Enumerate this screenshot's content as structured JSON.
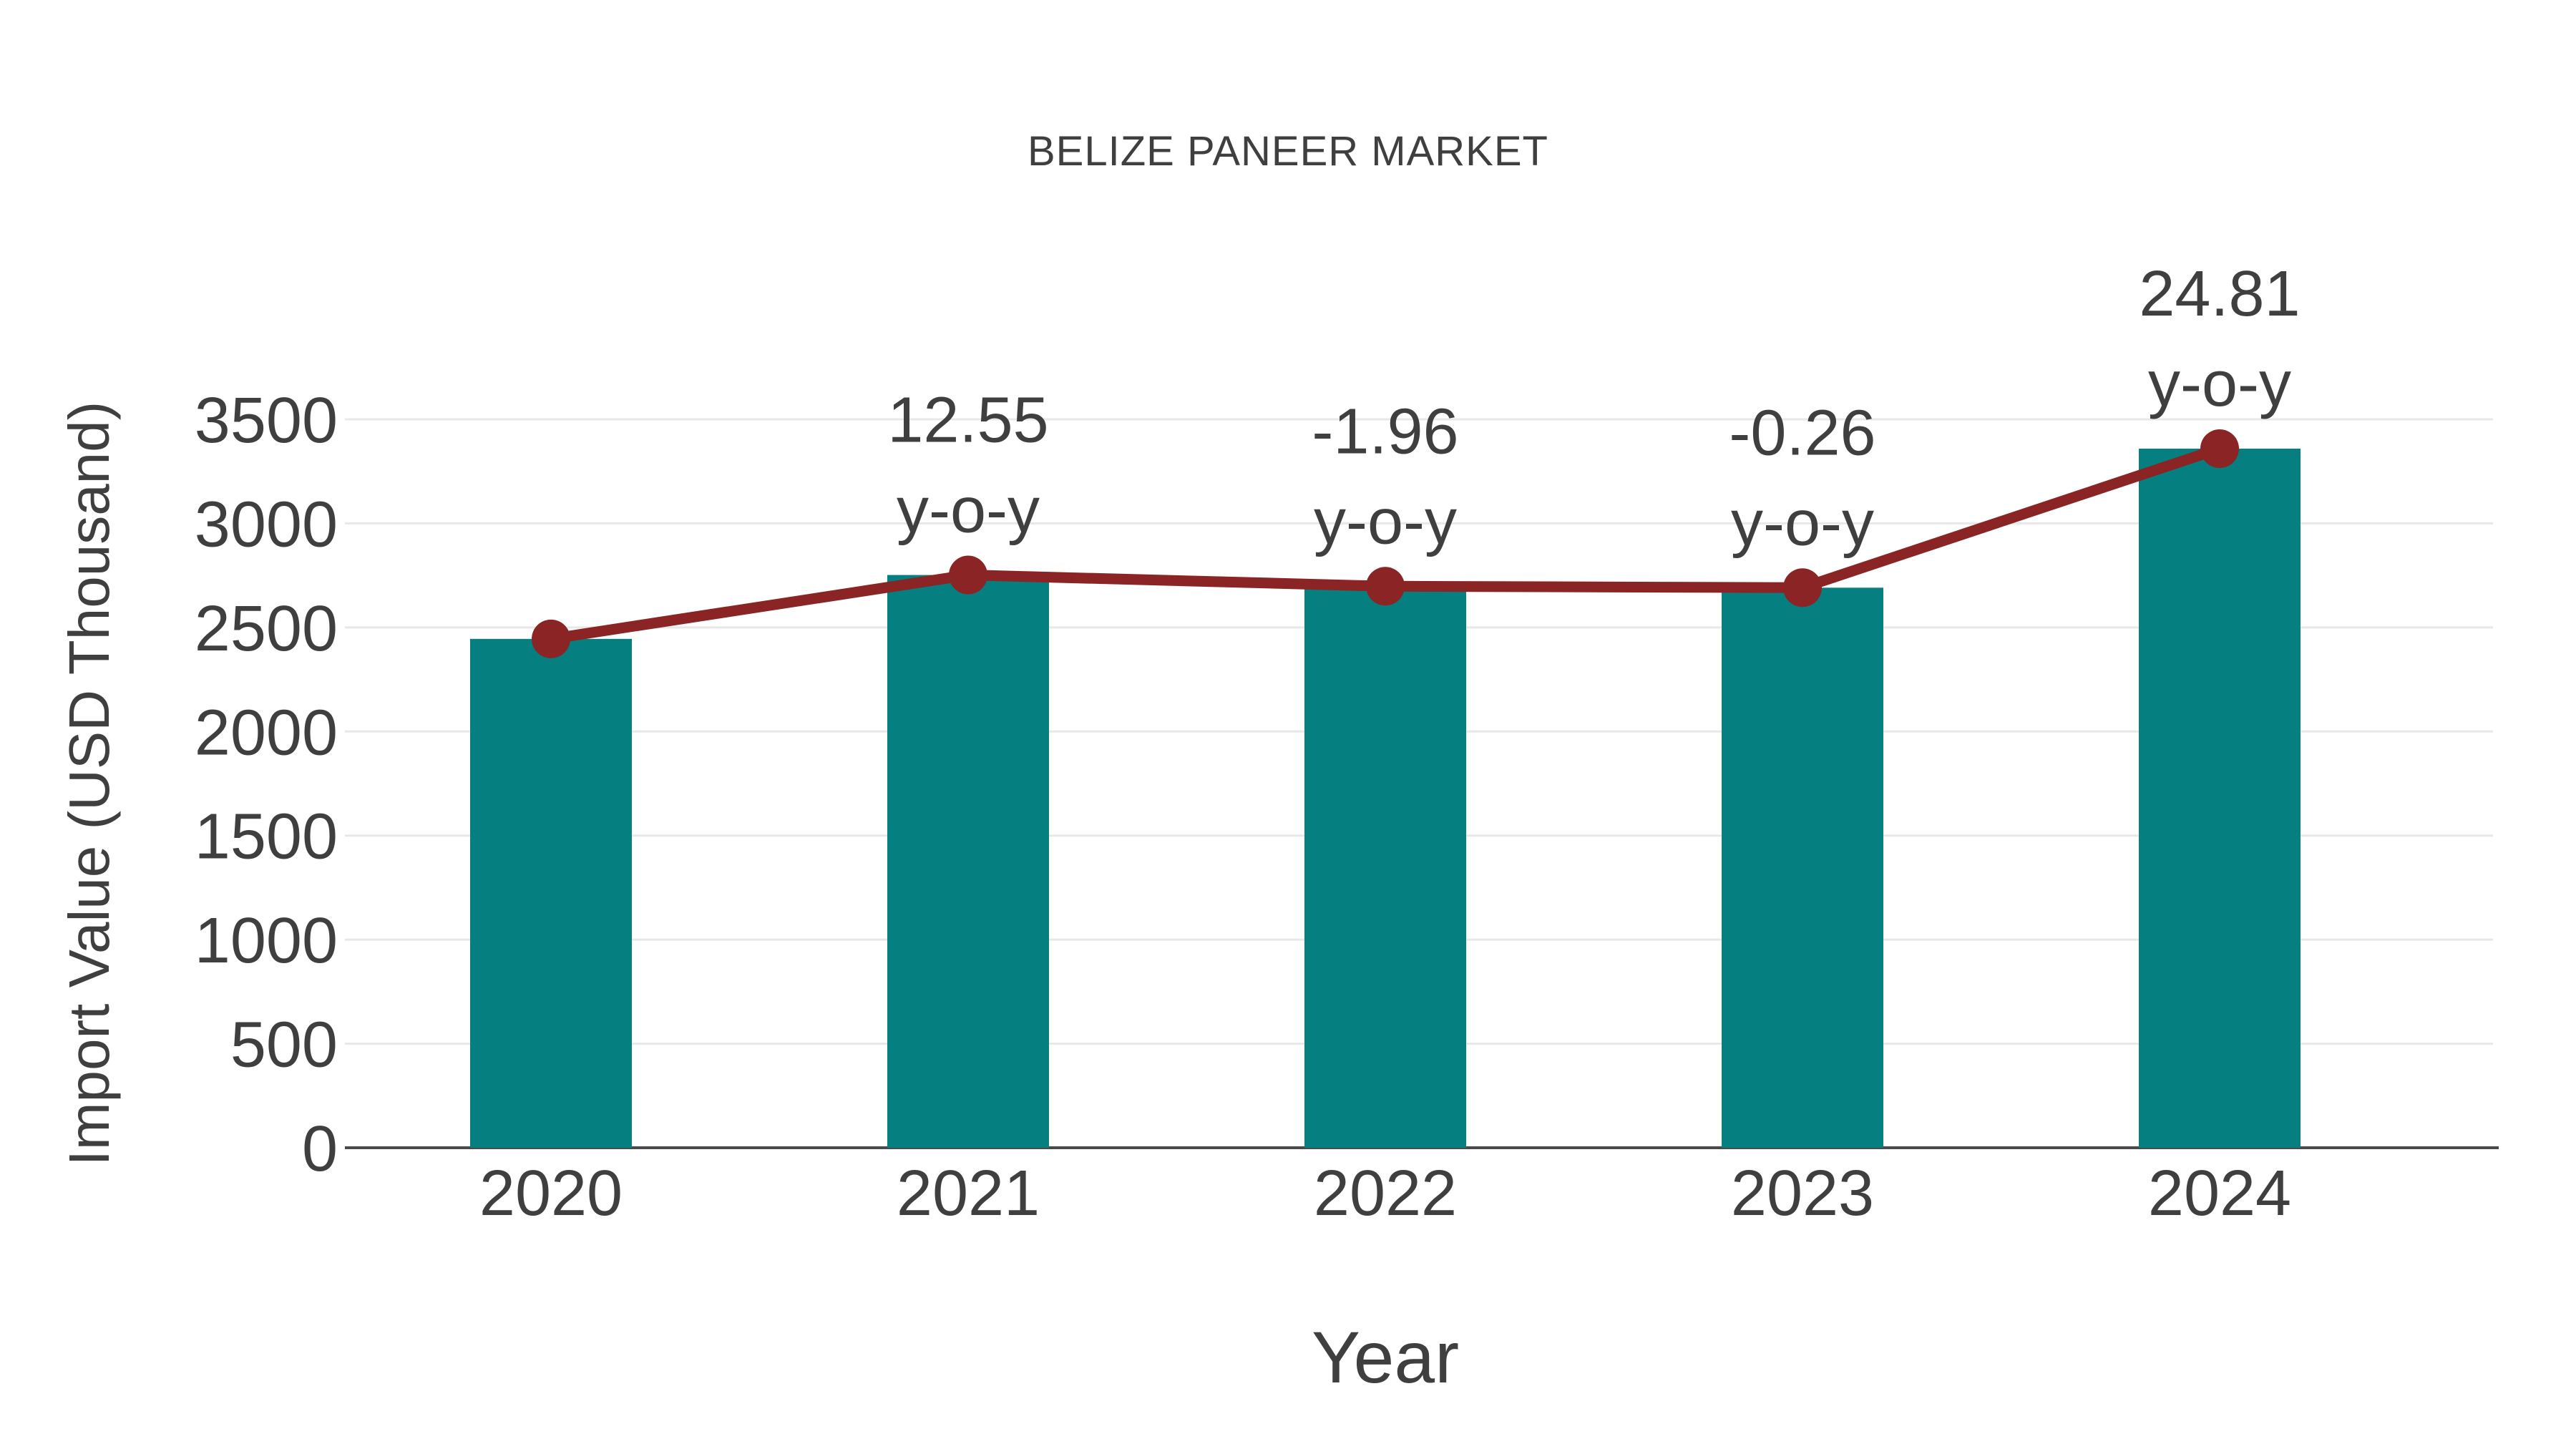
{
  "colors": {
    "bar": "#067f81",
    "line": "#8b2424",
    "text": "#3f3f3f",
    "grid": "#e8e8e8",
    "axis": "#4a4a4a",
    "background": "#ffffff"
  },
  "chart_data": {
    "type": "bar",
    "title": "BELIZE PANEER MARKET",
    "xlabel": "Year",
    "ylabel": "Import Value (USD Thousand)",
    "categories": [
      "2020",
      "2021",
      "2022",
      "2023",
      "2024"
    ],
    "series": [
      {
        "name": "Import Value (USD Thousand)",
        "type": "bar",
        "values": [
          2445,
          2752,
          2698,
          2691,
          3359
        ],
        "color": "#067f81"
      },
      {
        "name": "y-o-y trend",
        "type": "line",
        "values": [
          2445,
          2752,
          2698,
          2691,
          3359
        ],
        "color": "#8b2424"
      }
    ],
    "annotations": [
      {
        "category": "2021",
        "value_label": "12.55",
        "sub_label": "y-o-y"
      },
      {
        "category": "2022",
        "value_label": "-1.96",
        "sub_label": "y-o-y"
      },
      {
        "category": "2023",
        "value_label": "-0.26",
        "sub_label": "y-o-y"
      },
      {
        "category": "2024",
        "value_label": "24.81",
        "sub_label": "y-o-y"
      }
    ],
    "ylim": [
      0,
      3500
    ],
    "ytick_step": 500,
    "yticks": [
      0,
      500,
      1000,
      1500,
      2000,
      2500,
      3000,
      3500
    ],
    "grid": true,
    "legend": false
  }
}
